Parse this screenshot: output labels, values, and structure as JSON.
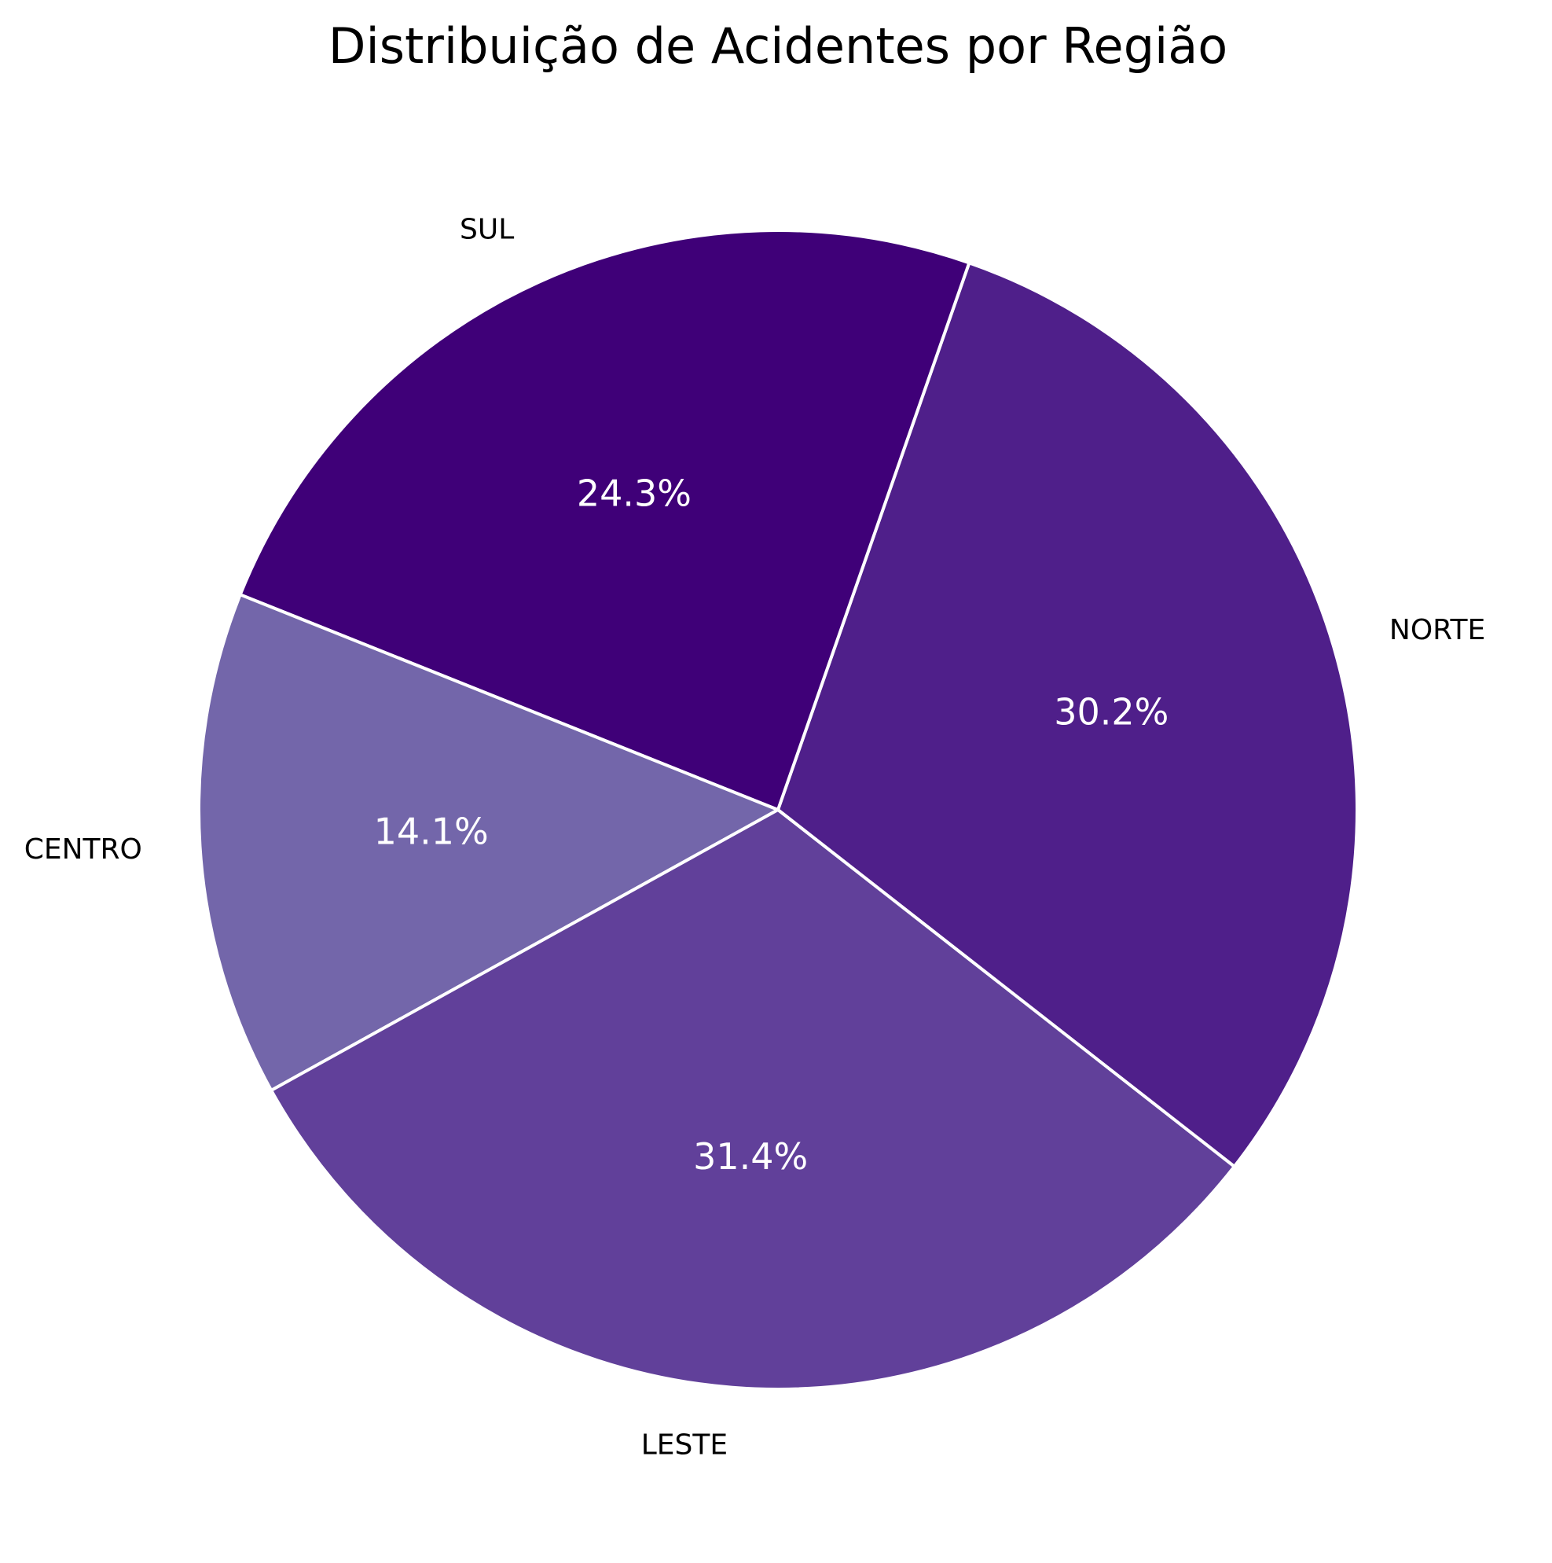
{
  "chart_data": {
    "type": "pie",
    "title": "Distribuição de Acidentes por Região",
    "slices": [
      {
        "label": "NORTE",
        "value": 30.2,
        "pct_label": "30.2%",
        "color": "#4f1f8a"
      },
      {
        "label": "SUL",
        "value": 24.3,
        "pct_label": "24.3%",
        "color": "#3f0078"
      },
      {
        "label": "CENTRO",
        "value": 14.1,
        "pct_label": "14.1%",
        "color": "#7366aa"
      },
      {
        "label": "LESTE",
        "value": 31.4,
        "pct_label": "31.4%",
        "color": "#61409a"
      }
    ],
    "slice_edge_color": "#ffffff",
    "legend": "none"
  }
}
